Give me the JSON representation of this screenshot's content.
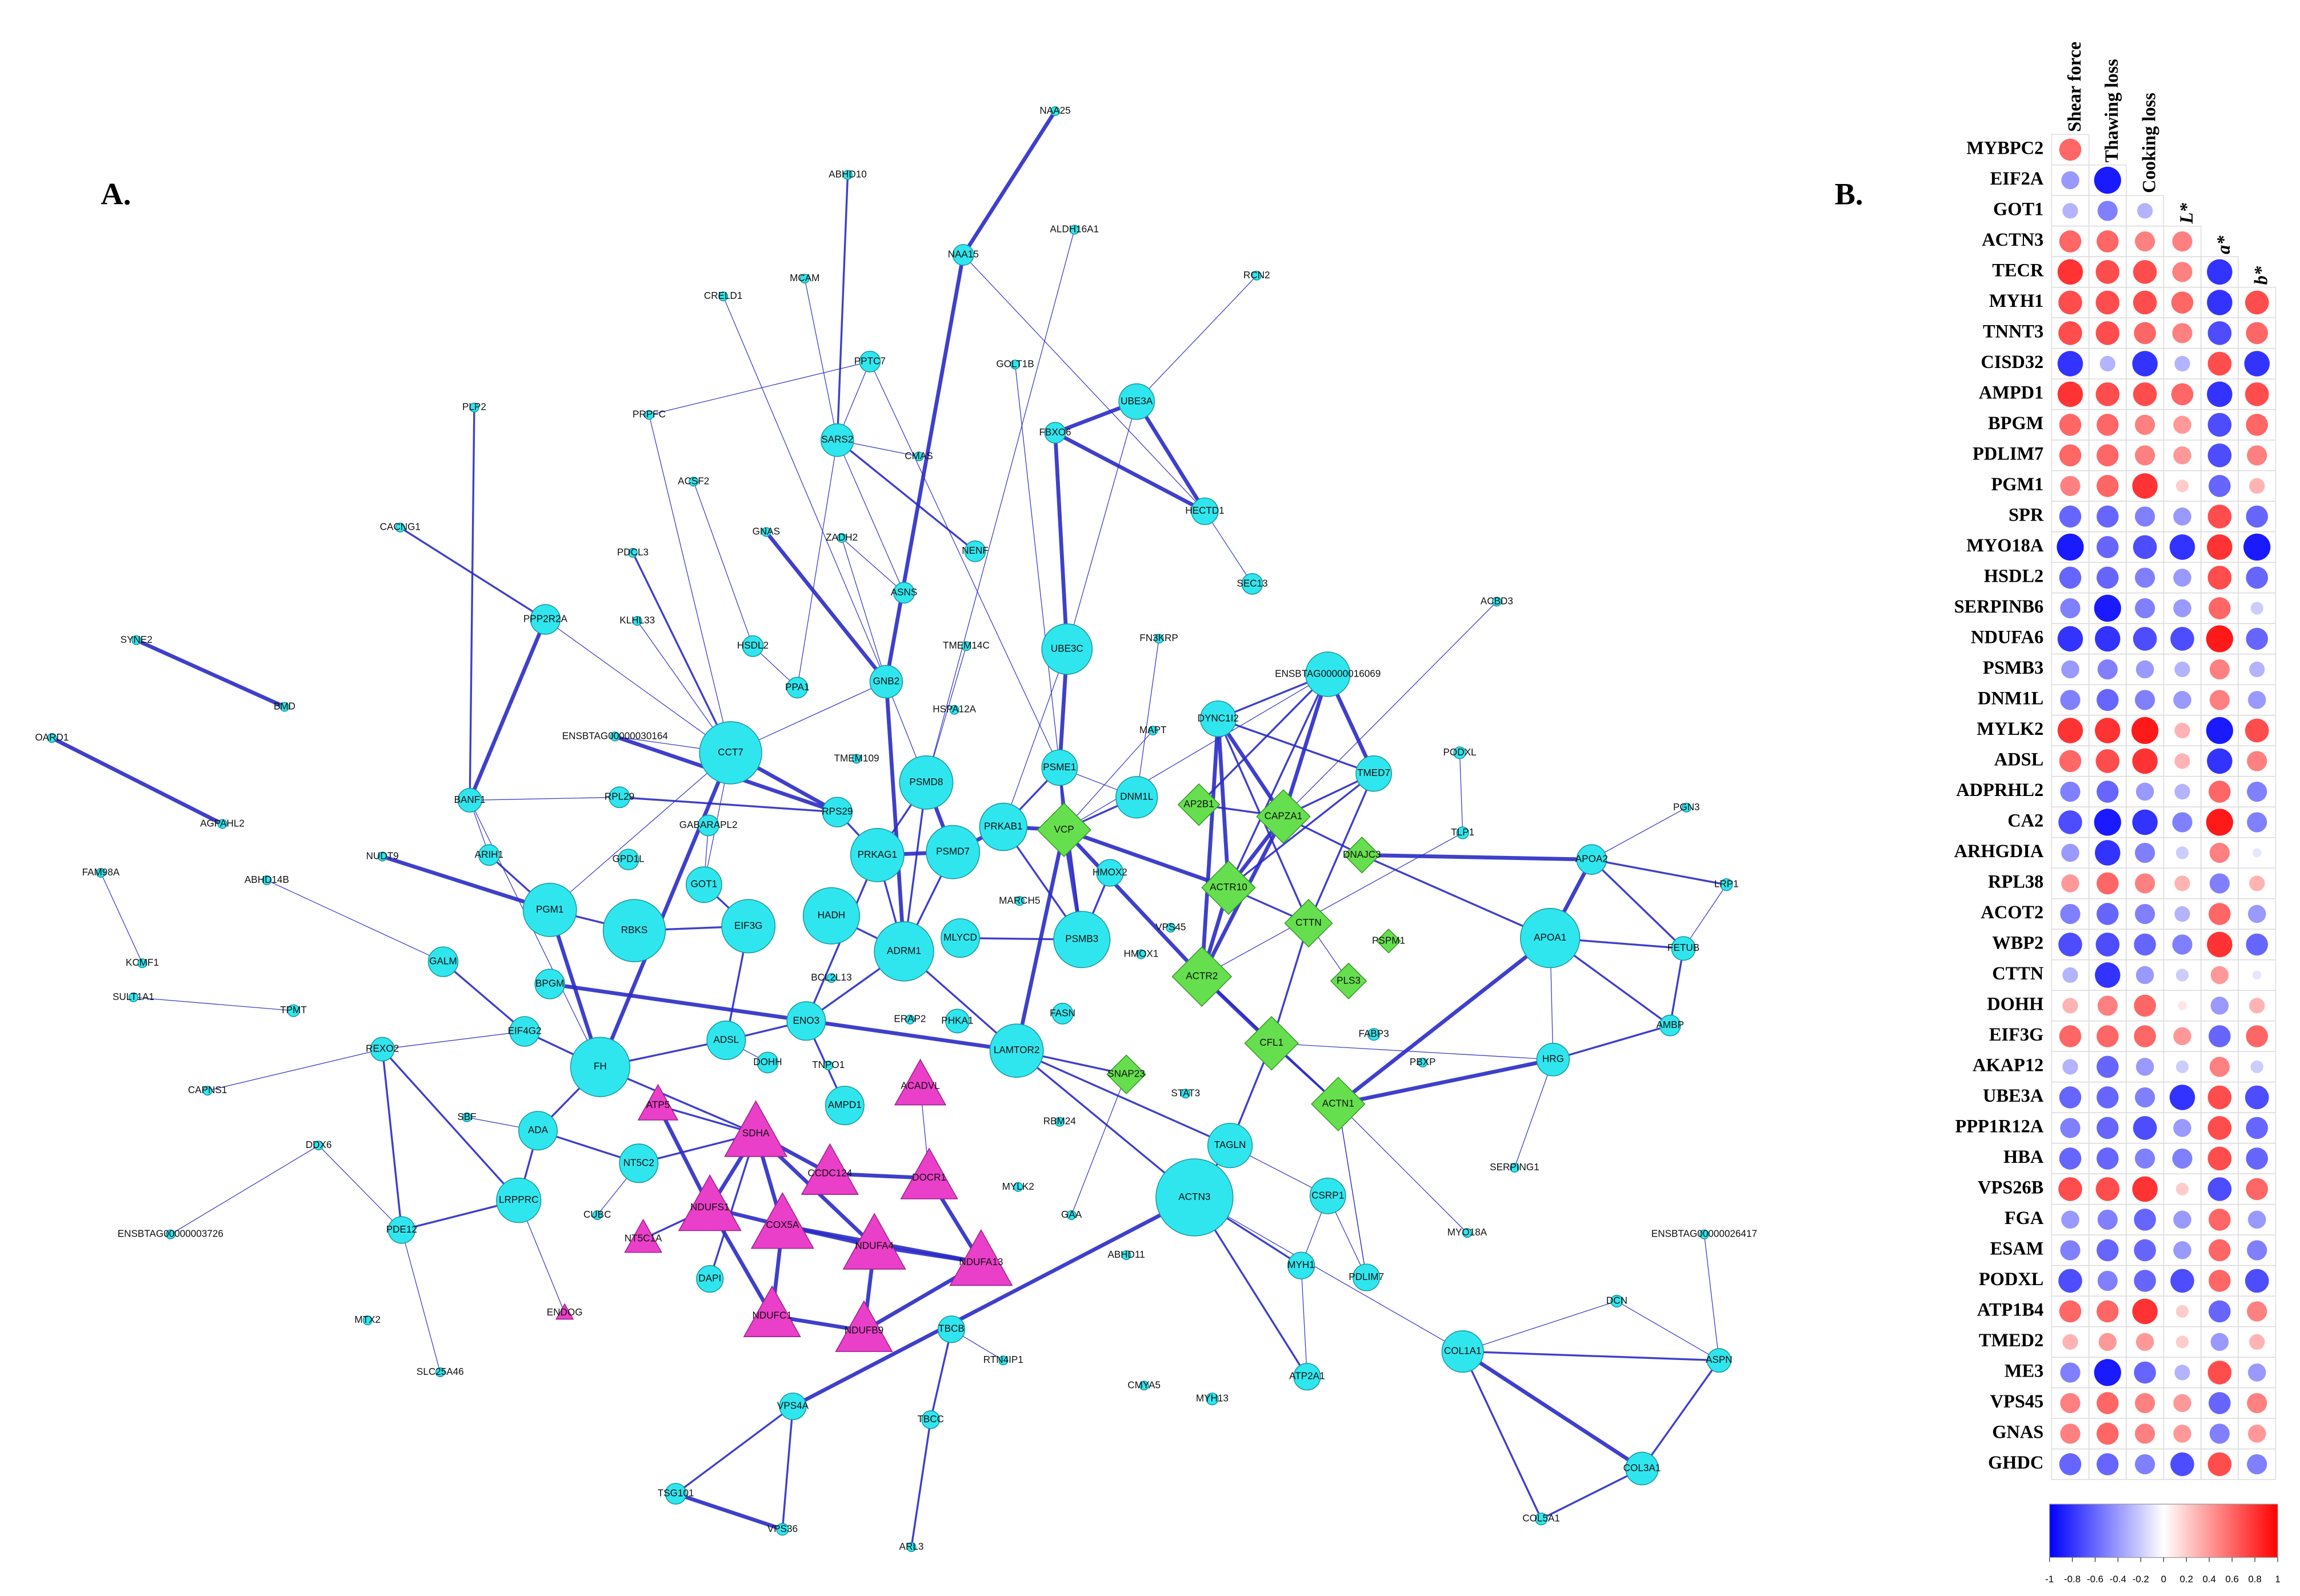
{
  "network": {
    "label": "A.",
    "colors": {
      "circle": "#30e6ee",
      "diamond": "#66df4e",
      "triangle": "#ea3fc8",
      "edge": "#2a2ac6"
    },
    "nodes": [
      {
        "label": "NAA25",
        "shape": "circle"
      },
      {
        "label": "ABHD10",
        "shape": "circle"
      },
      {
        "label": "ALDH16A1",
        "shape": "circle"
      },
      {
        "label": "NAA15",
        "shape": "circle"
      },
      {
        "label": "RCN2",
        "shape": "circle"
      },
      {
        "label": "CRELD1",
        "shape": "circle"
      },
      {
        "label": "MCAM",
        "shape": "circle"
      },
      {
        "label": "PPTC7",
        "shape": "circle"
      },
      {
        "label": "GOLT1B",
        "shape": "circle"
      },
      {
        "label": "PLP2",
        "shape": "circle"
      },
      {
        "label": "PRPFC",
        "shape": "circle"
      },
      {
        "label": "SARS2",
        "shape": "circle"
      },
      {
        "label": "CMAS",
        "shape": "circle"
      },
      {
        "label": "FBXO6",
        "shape": "circle"
      },
      {
        "label": "UBE3A",
        "shape": "circle"
      },
      {
        "label": "ACSF2",
        "shape": "circle"
      },
      {
        "label": "CACNG1",
        "shape": "circle"
      },
      {
        "label": "GNAS",
        "shape": "circle"
      },
      {
        "label": "ZADH2",
        "shape": "circle"
      },
      {
        "label": "NENF",
        "shape": "circle"
      },
      {
        "label": "HECTD1",
        "shape": "circle"
      },
      {
        "label": "PDCL3",
        "shape": "circle"
      },
      {
        "label": "ASNS",
        "shape": "circle"
      },
      {
        "label": "SEC13",
        "shape": "circle"
      },
      {
        "label": "ACBD3",
        "shape": "circle"
      },
      {
        "label": "SYNE2",
        "shape": "circle"
      },
      {
        "label": "PPP2R2A",
        "shape": "circle"
      },
      {
        "label": "KLHL33",
        "shape": "circle"
      },
      {
        "label": "HSDL2",
        "shape": "circle"
      },
      {
        "label": "TMEM14C",
        "shape": "circle"
      },
      {
        "label": "FN3KRP",
        "shape": "circle"
      },
      {
        "label": "UBE3C",
        "shape": "circle"
      },
      {
        "label": "GNB2",
        "shape": "circle"
      },
      {
        "label": "PPA1",
        "shape": "circle"
      },
      {
        "label": "ENSBTAG00000016069",
        "shape": "circle"
      },
      {
        "label": "BMD",
        "shape": "circle"
      },
      {
        "label": "HSPA12A",
        "shape": "circle"
      },
      {
        "label": "DYNC1I2",
        "shape": "circle"
      },
      {
        "label": "ENSBTAG00000030164",
        "shape": "circle"
      },
      {
        "label": "CCT7",
        "shape": "circle"
      },
      {
        "label": "MAPT",
        "shape": "circle"
      },
      {
        "label": "OARD1",
        "shape": "circle"
      },
      {
        "label": "TMEM109",
        "shape": "circle"
      },
      {
        "label": "PSME1",
        "shape": "circle"
      },
      {
        "label": "TMED7",
        "shape": "circle"
      },
      {
        "label": "PODXL",
        "shape": "circle"
      },
      {
        "label": "BANF1",
        "shape": "circle"
      },
      {
        "label": "RPL29",
        "shape": "circle"
      },
      {
        "label": "PSMD8",
        "shape": "circle"
      },
      {
        "label": "RPS29",
        "shape": "circle"
      },
      {
        "label": "DNM1L",
        "shape": "circle"
      },
      {
        "label": "AGPAHL2",
        "shape": "circle"
      },
      {
        "label": "GABARAPL2",
        "shape": "circle"
      },
      {
        "label": "PRKAB1",
        "shape": "circle"
      },
      {
        "label": "PSMD7",
        "shape": "circle"
      },
      {
        "label": "PRKAG1",
        "shape": "circle"
      },
      {
        "label": "TLP1",
        "shape": "circle"
      },
      {
        "label": "PGN3",
        "shape": "circle"
      },
      {
        "label": "NUDT9",
        "shape": "circle"
      },
      {
        "label": "ARIH1",
        "shape": "circle"
      },
      {
        "label": "GPD1L",
        "shape": "circle"
      },
      {
        "label": "GOT1",
        "shape": "circle"
      },
      {
        "label": "FAM98A",
        "shape": "circle"
      },
      {
        "label": "ABHD14B",
        "shape": "circle"
      },
      {
        "label": "HMOX2",
        "shape": "circle"
      },
      {
        "label": "APOA2",
        "shape": "circle"
      },
      {
        "label": "LRP1",
        "shape": "circle"
      },
      {
        "label": "PGM1",
        "shape": "circle"
      },
      {
        "label": "RBKS",
        "shape": "circle"
      },
      {
        "label": "EIF3G",
        "shape": "circle"
      },
      {
        "label": "HADH",
        "shape": "circle"
      },
      {
        "label": "MLYCD",
        "shape": "circle"
      },
      {
        "label": "ADRM1",
        "shape": "circle"
      },
      {
        "label": "MARCH5",
        "shape": "circle"
      },
      {
        "label": "VPS45",
        "shape": "circle"
      },
      {
        "label": "PSMB3",
        "shape": "circle"
      },
      {
        "label": "KCMF1",
        "shape": "circle"
      },
      {
        "label": "GALM",
        "shape": "circle"
      },
      {
        "label": "APOA1",
        "shape": "circle"
      },
      {
        "label": "FETUB",
        "shape": "circle"
      },
      {
        "label": "BPGM",
        "shape": "circle"
      },
      {
        "label": "BCL2L13",
        "shape": "circle"
      },
      {
        "label": "HMOX1",
        "shape": "circle"
      },
      {
        "label": "SULT1A1",
        "shape": "circle"
      },
      {
        "label": "TPMT",
        "shape": "circle"
      },
      {
        "label": "EIF4G2",
        "shape": "circle"
      },
      {
        "label": "ENO3",
        "shape": "circle"
      },
      {
        "label": "ERAP2",
        "shape": "circle"
      },
      {
        "label": "PHKA1",
        "shape": "circle"
      },
      {
        "label": "FASN",
        "shape": "circle"
      },
      {
        "label": "LAMTOR2",
        "shape": "circle"
      },
      {
        "label": "AMBP",
        "shape": "circle"
      },
      {
        "label": "FABP3",
        "shape": "circle"
      },
      {
        "label": "REXO2",
        "shape": "circle"
      },
      {
        "label": "ADSL",
        "shape": "circle"
      },
      {
        "label": "FH",
        "shape": "circle"
      },
      {
        "label": "TNPO1",
        "shape": "circle"
      },
      {
        "label": "PBXP",
        "shape": "circle"
      },
      {
        "label": "HRG",
        "shape": "circle"
      },
      {
        "label": "CAPNS1",
        "shape": "circle"
      },
      {
        "label": "DOHH",
        "shape": "circle"
      },
      {
        "label": "STAT3",
        "shape": "circle"
      },
      {
        "label": "SBF",
        "shape": "circle"
      },
      {
        "label": "ADA",
        "shape": "circle"
      },
      {
        "label": "AMPD1",
        "shape": "circle"
      },
      {
        "label": "RBM24",
        "shape": "circle"
      },
      {
        "label": "TAGLN",
        "shape": "circle"
      },
      {
        "label": "NT5C2",
        "shape": "circle"
      },
      {
        "label": "DDX6",
        "shape": "circle"
      },
      {
        "label": "SERPING1",
        "shape": "circle"
      },
      {
        "label": "MYLK2",
        "shape": "circle"
      },
      {
        "label": "ACTN3",
        "shape": "circle"
      },
      {
        "label": "CSRP1",
        "shape": "circle"
      },
      {
        "label": "LRPPRC",
        "shape": "circle"
      },
      {
        "label": "CUBC",
        "shape": "circle"
      },
      {
        "label": "GAA",
        "shape": "circle"
      },
      {
        "label": "MYO18A",
        "shape": "circle"
      },
      {
        "label": "PDE12",
        "shape": "circle"
      },
      {
        "label": "ENSBTAG00000003726",
        "shape": "circle"
      },
      {
        "label": "ENSBTAG00000026417",
        "shape": "circle"
      },
      {
        "label": "ABHD11",
        "shape": "circle"
      },
      {
        "label": "DAPI",
        "shape": "circle"
      },
      {
        "label": "MYH1",
        "shape": "circle"
      },
      {
        "label": "PDLIM7",
        "shape": "circle"
      },
      {
        "label": "MTX2",
        "shape": "circle"
      },
      {
        "label": "ENDOG",
        "shape": "triangle"
      },
      {
        "label": "TBCB",
        "shape": "circle"
      },
      {
        "label": "DCN",
        "shape": "circle"
      },
      {
        "label": "COL1A1",
        "shape": "circle"
      },
      {
        "label": "RTN4IP1",
        "shape": "circle"
      },
      {
        "label": "SLC25A46",
        "shape": "circle"
      },
      {
        "label": "CMYA5",
        "shape": "circle"
      },
      {
        "label": "MYH13",
        "shape": "circle"
      },
      {
        "label": "ATP2A1",
        "shape": "circle"
      },
      {
        "label": "ASPN",
        "shape": "circle"
      },
      {
        "label": "VPS4A",
        "shape": "circle"
      },
      {
        "label": "TBCC",
        "shape": "circle"
      },
      {
        "label": "COL3A1",
        "shape": "circle"
      },
      {
        "label": "TSG101",
        "shape": "circle"
      },
      {
        "label": "VPS36",
        "shape": "circle"
      },
      {
        "label": "ARL3",
        "shape": "circle"
      },
      {
        "label": "COL5A1",
        "shape": "circle"
      },
      {
        "label": "VCP",
        "shape": "diamond"
      },
      {
        "label": "AP2B1",
        "shape": "diamond"
      },
      {
        "label": "CAPZA1",
        "shape": "diamond"
      },
      {
        "label": "DNAJC3",
        "shape": "diamond"
      },
      {
        "label": "ACTR10",
        "shape": "diamond"
      },
      {
        "label": "CTTN",
        "shape": "diamond"
      },
      {
        "label": "PSPM1",
        "shape": "diamond"
      },
      {
        "label": "ACTR2",
        "shape": "diamond"
      },
      {
        "label": "PLS3",
        "shape": "diamond"
      },
      {
        "label": "CFL1",
        "shape": "diamond"
      },
      {
        "label": "SNAP23",
        "shape": "diamond"
      },
      {
        "label": "ACTN1",
        "shape": "diamond"
      },
      {
        "label": "ATP5",
        "shape": "triangle"
      },
      {
        "label": "ACADVL",
        "shape": "triangle"
      },
      {
        "label": "SDHA",
        "shape": "triangle"
      },
      {
        "label": "CCDC124",
        "shape": "triangle"
      },
      {
        "label": "DOCR1",
        "shape": "triangle"
      },
      {
        "label": "NDUFS1",
        "shape": "triangle"
      },
      {
        "label": "COX5A",
        "shape": "triangle"
      },
      {
        "label": "NDUFA4",
        "shape": "triangle"
      },
      {
        "label": "NDUFA13",
        "shape": "triangle"
      },
      {
        "label": "NT5C1A",
        "shape": "triangle"
      },
      {
        "label": "NDUFC1",
        "shape": "triangle"
      },
      {
        "label": "NDUFB9",
        "shape": "triangle"
      }
    ]
  },
  "heatmap": {
    "label": "B.",
    "columns": [
      "Shear force",
      "Thawing loss",
      "Cooking loss",
      "L*",
      "a*",
      "b*"
    ],
    "rows": [
      "MYBPC2",
      "EIF2A",
      "GOT1",
      "ACTN3",
      "TECR",
      "MYH1",
      "TNNT3",
      "CISD32",
      "AMPD1",
      "BPGM",
      "PDLIM7",
      "PGM1",
      "SPR",
      "MYO18A",
      "HSDL2",
      "SERPINB6",
      "NDUFA6",
      "PSMB3",
      "DNM1L",
      "MYLK2",
      "ADSL",
      "ADPRHL2",
      "CA2",
      "ARHGDIA",
      "RPL38",
      "ACOT2",
      "WBP2",
      "CTTN",
      "DOHH",
      "EIF3G",
      "AKAP12",
      "UBE3A",
      "PPP1R12A",
      "HBA",
      "VPS26B",
      "FGA",
      "ESAM",
      "PODXL",
      "ATP1B4",
      "TMED2",
      "ME3",
      "VPS45",
      "GNAS",
      "GHDC"
    ],
    "values": [
      [
        0.6,
        null,
        null,
        null,
        null,
        null
      ],
      [
        -0.4,
        -0.9,
        null,
        null,
        null,
        null
      ],
      [
        -0.3,
        -0.5,
        -0.3,
        null,
        null,
        null
      ],
      [
        0.6,
        0.6,
        0.5,
        0.5,
        null,
        null
      ],
      [
        0.8,
        0.7,
        0.7,
        0.5,
        -0.8,
        null
      ],
      [
        0.7,
        0.7,
        0.7,
        0.6,
        -0.8,
        0.7
      ],
      [
        0.7,
        0.7,
        0.6,
        0.5,
        -0.7,
        0.6
      ],
      [
        -0.8,
        -0.3,
        -0.8,
        -0.3,
        0.7,
        -0.8
      ],
      [
        0.8,
        0.7,
        0.7,
        0.6,
        -0.8,
        0.7
      ],
      [
        0.6,
        0.6,
        0.5,
        0.4,
        -0.7,
        0.6
      ],
      [
        0.6,
        0.6,
        0.5,
        0.4,
        -0.7,
        0.5
      ],
      [
        0.5,
        0.6,
        0.8,
        0.2,
        -0.6,
        0.3
      ],
      [
        -0.6,
        -0.6,
        -0.5,
        -0.4,
        0.7,
        -0.6
      ],
      [
        -0.9,
        -0.6,
        -0.7,
        -0.8,
        0.8,
        -0.9
      ],
      [
        -0.6,
        -0.6,
        -0.5,
        -0.4,
        0.7,
        -0.6
      ],
      [
        -0.5,
        -0.9,
        -0.5,
        -0.4,
        0.6,
        -0.2
      ],
      [
        -0.8,
        -0.8,
        -0.7,
        -0.7,
        0.9,
        -0.6
      ],
      [
        -0.4,
        -0.5,
        -0.4,
        -0.3,
        0.5,
        -0.3
      ],
      [
        -0.5,
        -0.6,
        -0.5,
        -0.4,
        0.5,
        -0.4
      ],
      [
        0.8,
        0.8,
        0.9,
        0.3,
        -0.9,
        0.7
      ],
      [
        0.6,
        0.7,
        0.8,
        0.3,
        -0.8,
        0.5
      ],
      [
        -0.5,
        -0.6,
        -0.4,
        -0.3,
        0.6,
        -0.5
      ],
      [
        -0.7,
        -0.9,
        -0.8,
        -0.5,
        0.9,
        -0.5
      ],
      [
        -0.4,
        -0.8,
        -0.5,
        -0.2,
        0.5,
        -0.1
      ],
      [
        0.4,
        0.6,
        0.5,
        0.3,
        -0.5,
        0.3
      ],
      [
        -0.5,
        -0.6,
        -0.5,
        -0.3,
        0.6,
        -0.4
      ],
      [
        -0.7,
        -0.7,
        -0.6,
        -0.5,
        0.8,
        -0.6
      ],
      [
        -0.3,
        -0.8,
        -0.4,
        -0.2,
        0.4,
        -0.1
      ],
      [
        0.3,
        0.5,
        0.6,
        0.1,
        -0.4,
        0.3
      ],
      [
        0.6,
        0.6,
        0.6,
        0.4,
        -0.6,
        0.6
      ],
      [
        -0.3,
        -0.6,
        -0.4,
        -0.2,
        0.5,
        -0.2
      ],
      [
        -0.6,
        -0.6,
        -0.5,
        -0.8,
        0.7,
        -0.7
      ],
      [
        -0.5,
        -0.6,
        -0.7,
        -0.4,
        0.7,
        -0.6
      ],
      [
        -0.6,
        -0.6,
        -0.5,
        -0.5,
        0.7,
        -0.6
      ],
      [
        0.7,
        0.7,
        0.8,
        0.2,
        -0.7,
        0.6
      ],
      [
        -0.4,
        -0.5,
        -0.6,
        -0.4,
        0.6,
        -0.4
      ],
      [
        -0.5,
        -0.6,
        -0.6,
        -0.4,
        0.6,
        -0.5
      ],
      [
        -0.7,
        -0.5,
        -0.6,
        -0.7,
        0.6,
        -0.7
      ],
      [
        0.6,
        0.6,
        0.8,
        0.2,
        -0.6,
        0.5
      ],
      [
        0.3,
        0.4,
        0.4,
        0.2,
        -0.4,
        0.3
      ],
      [
        -0.5,
        -0.9,
        -0.6,
        -0.3,
        0.7,
        -0.4
      ],
      [
        0.5,
        0.6,
        0.5,
        0.4,
        -0.6,
        0.5
      ],
      [
        0.5,
        0.6,
        0.5,
        0.4,
        -0.5,
        0.4
      ],
      [
        -0.6,
        -0.6,
        -0.5,
        -0.7,
        0.7,
        -0.5
      ]
    ],
    "colors": {
      "negative": "#0000ff",
      "zero": "#ffffff",
      "positive": "#ff0000"
    },
    "colorbar": {
      "lim": [
        -1,
        1
      ],
      "ticks": [
        -1,
        -0.8,
        -0.6,
        -0.4,
        -0.2,
        0,
        0.2,
        0.4,
        0.6,
        0.8,
        1
      ]
    }
  }
}
